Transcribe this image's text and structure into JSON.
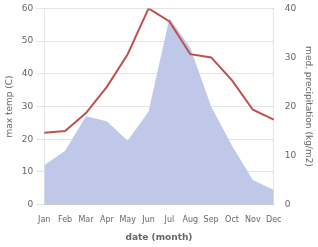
{
  "chart_data": {
    "type": "line",
    "categories": [
      "Jan",
      "Feb",
      "Mar",
      "Apr",
      "May",
      "Jun",
      "Jul",
      "Aug",
      "Sep",
      "Oct",
      "Nov",
      "Dec"
    ],
    "series": [
      {
        "type": "area",
        "axis": "y2",
        "color": "#bfc8e8",
        "values": [
          8,
          11,
          18,
          17,
          13,
          19,
          38,
          32,
          20,
          12,
          5,
          3
        ]
      },
      {
        "type": "line",
        "color": "#c0504d",
        "values": [
          22,
          22.5,
          28,
          36,
          46,
          60,
          56,
          46,
          45,
          38,
          29,
          26
        ]
      }
    ],
    "xlabel": "date (month)",
    "ylabel": "max temp (C)",
    "y2label": "med. precipitation (kg/m2)",
    "ylim": [
      0,
      60
    ],
    "yticks": [
      0,
      10,
      20,
      30,
      40,
      50,
      60
    ],
    "y2lim": [
      0,
      40
    ],
    "y2ticks": [
      0,
      10,
      20,
      30,
      40
    ],
    "grid": "y"
  }
}
